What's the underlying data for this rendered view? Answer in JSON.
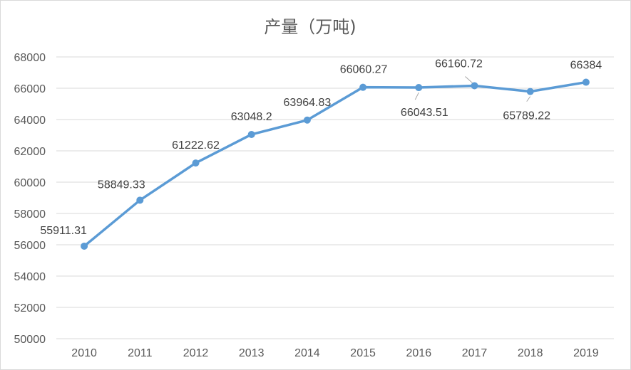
{
  "chart_data": {
    "type": "line",
    "title": "产量（万吨)",
    "xlabel": "",
    "ylabel": "",
    "categories": [
      "2010",
      "2011",
      "2012",
      "2013",
      "2014",
      "2015",
      "2016",
      "2017",
      "2018",
      "2019"
    ],
    "series": [
      {
        "values": [
          55911.31,
          58849.33,
          61222.62,
          63048.2,
          63964.83,
          66060.27,
          66043.51,
          66160.72,
          65789.22,
          66384
        ],
        "labels": [
          "55911.31",
          "58849.33",
          "61222.62",
          "63048.2",
          "63964.83",
          "66060.27",
          "66043.51",
          "66160.72",
          "65789.22",
          "66384"
        ]
      }
    ],
    "ylim": [
      50000,
      68000
    ],
    "yticks": [
      "50000",
      "52000",
      "54000",
      "56000",
      "58000",
      "60000",
      "62000",
      "64000",
      "66000",
      "68000"
    ],
    "grid": true,
    "legend": "none",
    "colors": {
      "series": "#5b9bd5",
      "grid": "#d9d9d9",
      "text": "#595959"
    }
  }
}
